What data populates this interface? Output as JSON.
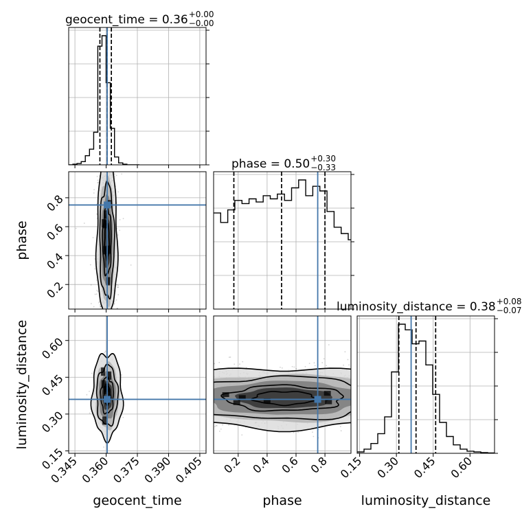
{
  "chart_data": {
    "type": "corner",
    "parameters": [
      {
        "name": "geocent_time",
        "truth": 0.3605,
        "range": [
          0.342,
          0.408
        ],
        "ticks": [
          0.345,
          0.36,
          0.375,
          0.39,
          0.405
        ],
        "tick_labels": [
          "0.345",
          "0.360",
          "0.375",
          "0.390",
          "0.405"
        ]
      },
      {
        "name": "phase",
        "truth": 0.75,
        "range": [
          0.03,
          0.98
        ],
        "ticks": [
          0.2,
          0.4,
          0.6,
          0.8
        ],
        "tick_labels": [
          "0.2",
          "0.4",
          "0.6",
          "0.8"
        ]
      },
      {
        "name": "luminosity_distance",
        "truth": 0.36,
        "range": [
          0.14,
          0.7
        ],
        "ticks": [
          0.15,
          0.3,
          0.45,
          0.6
        ],
        "tick_labels": [
          "0.15",
          "0.30",
          "0.45",
          "0.60"
        ]
      }
    ],
    "titles": [
      {
        "base": "geocent_time = 0.36",
        "sup": "+0.00",
        "sub": "−0.00"
      },
      {
        "base": "phase = 0.50",
        "sup": "+0.30",
        "sub": "−0.33"
      },
      {
        "base": "luminosity_distance = 0.38",
        "sup": "+0.08",
        "sub": "−0.07"
      }
    ],
    "quantiles": [
      [
        0.357,
        0.3605,
        0.3625
      ],
      [
        0.17,
        0.5,
        0.8
      ],
      [
        0.31,
        0.38,
        0.46
      ]
    ],
    "histograms": [
      {
        "bins": [
          0.342,
          0.344,
          0.346,
          0.348,
          0.35,
          0.352,
          0.354,
          0.356,
          0.358,
          0.36,
          0.362,
          0.364,
          0.366,
          0.368,
          0.37,
          0.372,
          0.374,
          0.376
        ],
        "counts": [
          0,
          1,
          2,
          5,
          14,
          24,
          50,
          182,
          198,
          126,
          56,
          12,
          3,
          1,
          0,
          0,
          0
        ]
      },
      {
        "bins": [
          0.03,
          0.079,
          0.128,
          0.177,
          0.226,
          0.275,
          0.324,
          0.373,
          0.422,
          0.471,
          0.52,
          0.569,
          0.618,
          0.667,
          0.716,
          0.765,
          0.814,
          0.863,
          0.912,
          0.961,
          0.98
        ],
        "counts": [
          0.61,
          0.55,
          0.63,
          0.69,
          0.67,
          0.7,
          0.68,
          0.72,
          0.7,
          0.73,
          0.69,
          0.77,
          0.82,
          0.72,
          0.78,
          0.75,
          0.62,
          0.52,
          0.48,
          0.44
        ]
      },
      {
        "bins": [
          0.14,
          0.168,
          0.196,
          0.224,
          0.252,
          0.28,
          0.308,
          0.336,
          0.364,
          0.392,
          0.42,
          0.448,
          0.476,
          0.504,
          0.532,
          0.56,
          0.588,
          0.616,
          0.644,
          0.672,
          0.7
        ],
        "counts": [
          0.01,
          0.03,
          0.07,
          0.14,
          0.26,
          0.58,
          0.92,
          0.88,
          0.78,
          0.8,
          0.63,
          0.42,
          0.22,
          0.12,
          0.06,
          0.03,
          0.015,
          0.01,
          0.005,
          0.003
        ]
      }
    ],
    "truth_color": "#4477aa",
    "contour_color": "#000000",
    "grid": true
  }
}
